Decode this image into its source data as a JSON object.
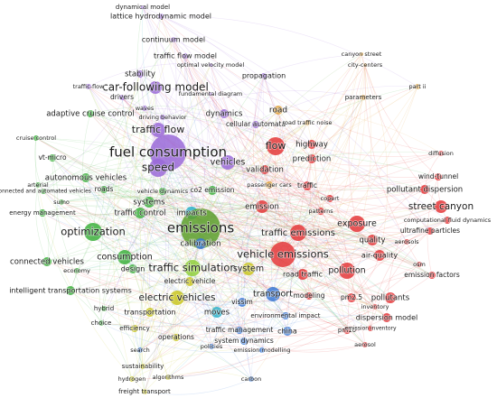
{
  "nodes": [
    "dynamical model",
    "lattice hydrodynamic model",
    "continuum model",
    "traffic flow model",
    "optimal velocity model",
    "stability",
    "car-following model",
    "propagation",
    "traffic-flow",
    "drivers",
    "fundamental diagram",
    "waves",
    "driving behavior",
    "dynamics",
    "cellular automata",
    "adaptive cruise control",
    "traffic flow",
    "road",
    "road traffic noise",
    "parameters",
    "part ii",
    "canyon street",
    "city-centers",
    "fuel consumption",
    "speed",
    "flow",
    "highway",
    "prediction",
    "diffusion",
    "wind-tunnel",
    "pollutant dispersion",
    "street canyon",
    "computational fluid dynamics",
    "ultrafine particles",
    "vehicles",
    "validation",
    "cruise control",
    "vt-micro",
    "autonomous vehicles",
    "vehicle dynamics",
    "co2 emission",
    "passenger cars",
    "traffic",
    "copert",
    "exposure",
    "arterial",
    "connected and automated vehicles",
    "roads",
    "systems",
    "sumo",
    "energy management",
    "traffic control",
    "impacts",
    "emission",
    "patterns",
    "emissions",
    "optimization",
    "traffic emissions",
    "quality",
    "aerosols",
    "consumption",
    "calibration",
    "vehicle emissions",
    "air-quality",
    "connected vehicles",
    "economy",
    "design",
    "traffic simulation",
    "system",
    "pollution",
    "osm",
    "emission factors",
    "intelligent transportation systems",
    "electric vehicle",
    "road traffic",
    "transport",
    "modeling",
    "pm2.5",
    "pollutants",
    "electric vehicles",
    "vissim",
    "hybrid",
    "transportation",
    "moves",
    "environmental impact",
    "inventory",
    "dispersion model",
    "choice",
    "efficiency",
    "traffic management",
    "china",
    "pm10",
    "emission inventory",
    "operations",
    "system dynamics",
    "policies",
    "emission modelling",
    "aerosol",
    "search",
    "sustainability",
    "algorithms",
    "hydrogen",
    "carbon",
    "freight transport"
  ]
}
